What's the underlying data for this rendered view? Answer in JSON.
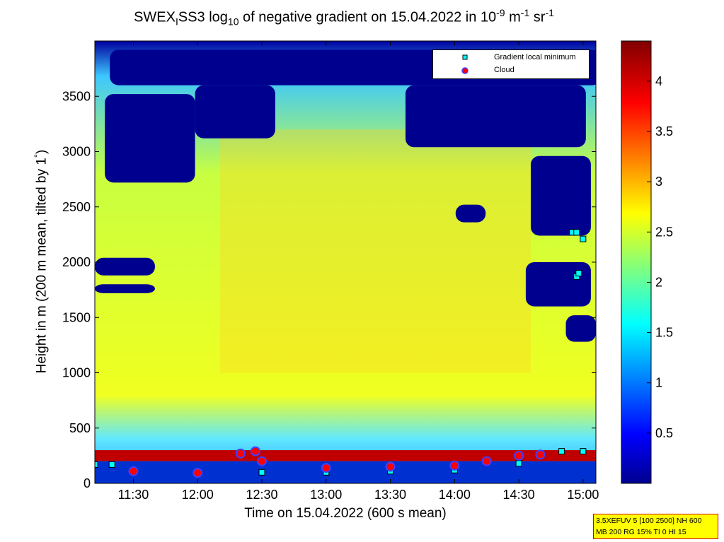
{
  "title": {
    "prefix": "SWEX",
    "sub1": "I",
    "mid": "SS3 log",
    "sub2": "10",
    "rest": " of negative gradient on 15.04.2022 in 10",
    "sup1": "-9",
    "unit1": " m",
    "sup2": "-1",
    "unit2": " sr",
    "sup3": "-1"
  },
  "xlabel": "Time on 15.04.2022 (600 s mean)",
  "ylabel_main": "Height in m (200 m mean, tilted by 1",
  "ylabel_deg": "°",
  "ylabel_end": ")",
  "legend": {
    "entries": [
      "Gradient local minimum",
      "Cloud"
    ]
  },
  "info_lines": [
    "3.5XEFUV 5 [100 2500] NH 600",
    "MB 200 RG 15% TI 0 HI 15"
  ],
  "colors": {
    "background": "#ffffff",
    "colormap": [
      "#00008f",
      "#0000ff",
      "#0080ff",
      "#00ffff",
      "#80ff80",
      "#ffff00",
      "#ff8000",
      "#ff0000",
      "#800000"
    ],
    "gradient_minimum_marker": "#00ffff",
    "cloud_marker": "#ff0000"
  },
  "chart_data": {
    "type": "heatmap",
    "colormap": "jet",
    "x_axis": {
      "label": "Time on 15.04.2022 (600 s mean)",
      "range": [
        "11:12",
        "15:06"
      ],
      "ticks": [
        "11:30",
        "12:00",
        "12:30",
        "13:00",
        "13:30",
        "14:00",
        "14:30",
        "15:00"
      ]
    },
    "y_axis": {
      "label": "Height in m (200 m mean, tilted by 1°)",
      "range": [
        0,
        4000
      ],
      "ticks": [
        0,
        500,
        1000,
        1500,
        2000,
        2500,
        3000,
        3500
      ]
    },
    "colorbar": {
      "range": [
        0,
        4.4
      ],
      "ticks": [
        0.5,
        1,
        1.5,
        2,
        2.5,
        3,
        3.5,
        4
      ]
    },
    "series": [
      {
        "name": "Gradient local minimum",
        "approx_points": [
          {
            "time": "11:12",
            "height": 170
          },
          {
            "time": "11:20",
            "height": 170
          },
          {
            "time": "11:30",
            "height": 120
          },
          {
            "time": "12:00",
            "height": 95
          },
          {
            "time": "12:30",
            "height": 100
          },
          {
            "time": "13:00",
            "height": 100
          },
          {
            "time": "13:30",
            "height": 110
          },
          {
            "time": "14:00",
            "height": 120
          },
          {
            "time": "14:30",
            "height": 180
          },
          {
            "time": "14:50",
            "height": 290
          },
          {
            "time": "15:00",
            "height": 290
          },
          {
            "time": "14:55",
            "height": 2270
          },
          {
            "time": "14:57",
            "height": 2270
          },
          {
            "time": "15:00",
            "height": 2210
          },
          {
            "time": "14:57",
            "height": 1870
          },
          {
            "time": "14:58",
            "height": 1900
          }
        ]
      },
      {
        "name": "Cloud",
        "approx_points": [
          {
            "time": "11:30",
            "height": 110
          },
          {
            "time": "12:00",
            "height": 95
          },
          {
            "time": "12:20",
            "height": 270
          },
          {
            "time": "12:27",
            "height": 290
          },
          {
            "time": "12:30",
            "height": 200
          },
          {
            "time": "13:00",
            "height": 140
          },
          {
            "time": "13:30",
            "height": 150
          },
          {
            "time": "14:00",
            "height": 160
          },
          {
            "time": "14:15",
            "height": 200
          },
          {
            "time": "14:30",
            "height": 250
          },
          {
            "time": "14:40",
            "height": 260
          }
        ]
      }
    ]
  }
}
